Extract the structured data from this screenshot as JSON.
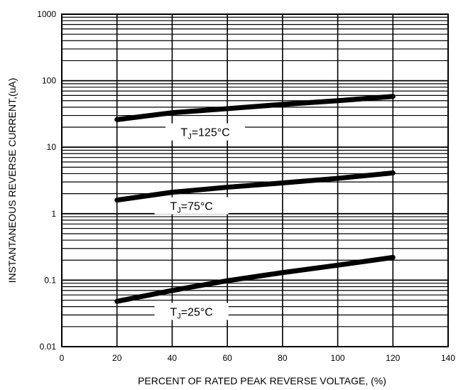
{
  "chart_data": {
    "type": "line",
    "xlabel": "PERCENT OF RATED PEAK REVERSE VOLTAGE, (%)",
    "ylabel": "INSTANTANEOUS REVERSE CURRENT,(uA)",
    "xlim": [
      0,
      140
    ],
    "ylim": [
      0.01,
      1000
    ],
    "yscale": "log",
    "grid": true,
    "x_ticks": [
      0,
      20,
      40,
      60,
      80,
      100,
      120,
      140
    ],
    "x_tick_labels": [
      "0",
      "20",
      "40",
      "60",
      "80",
      "100",
      "120",
      "140"
    ],
    "y_ticks": [
      0.01,
      0.1,
      1,
      10,
      100,
      1000
    ],
    "y_tick_labels": [
      "0.01",
      "0.1",
      "1",
      "10",
      "100",
      "1000"
    ],
    "series": [
      {
        "label": {
          "main": "T",
          "sub": "J",
          "rest": "=125°C"
        },
        "x": [
          20,
          40,
          60,
          80,
          100,
          120
        ],
        "y": [
          26,
          33,
          38,
          44,
          50,
          58
        ]
      },
      {
        "label": {
          "main": "T",
          "sub": "J",
          "rest": "=75°C"
        },
        "x": [
          20,
          40,
          60,
          80,
          100,
          120
        ],
        "y": [
          1.6,
          2.1,
          2.5,
          2.9,
          3.4,
          4.1
        ]
      },
      {
        "label": {
          "main": "T",
          "sub": "J",
          "rest": "=25°C"
        },
        "x": [
          20,
          40,
          60,
          80,
          100,
          120
        ],
        "y": [
          0.048,
          0.07,
          0.098,
          0.13,
          0.168,
          0.22
        ]
      }
    ]
  }
}
